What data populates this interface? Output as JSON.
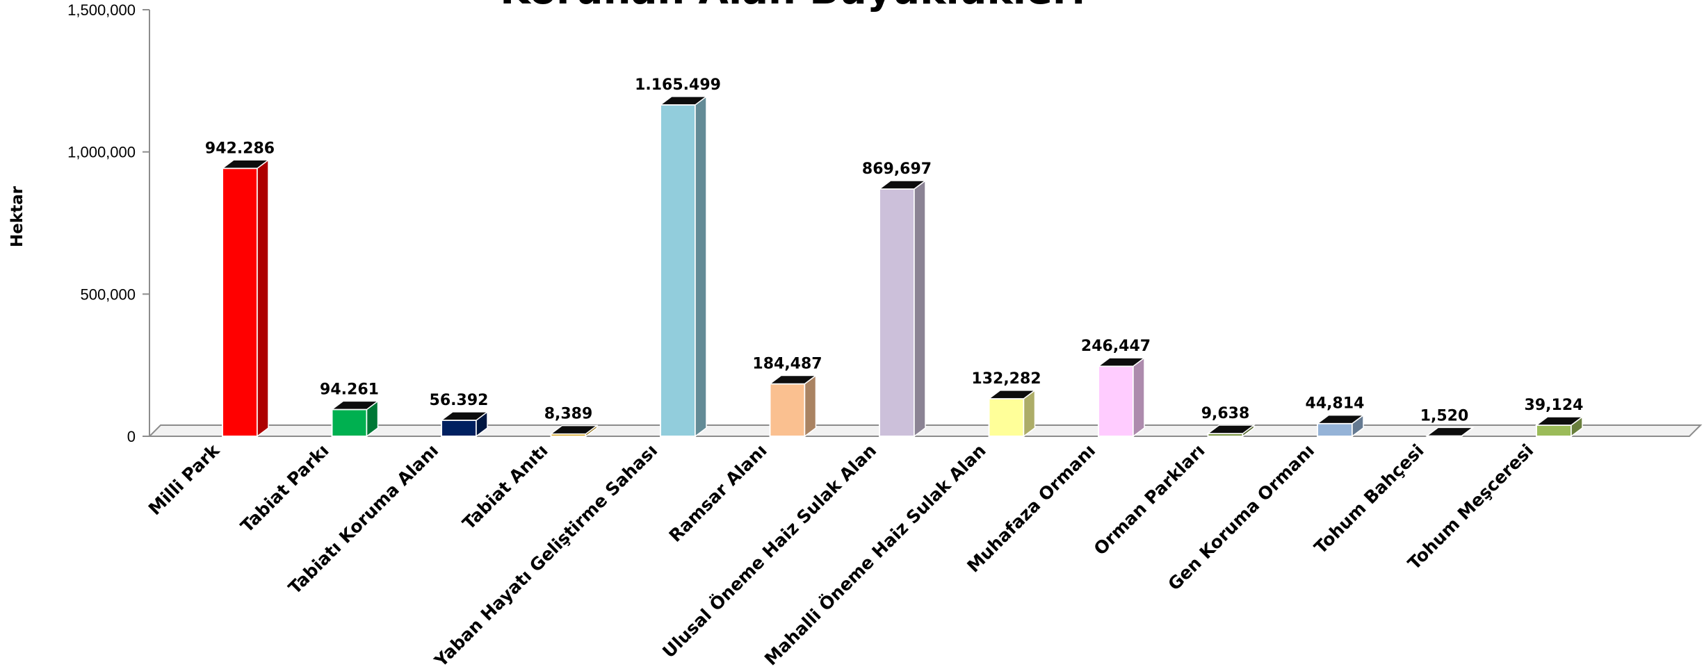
{
  "chart_data": {
    "type": "bar",
    "title": "Korunan Alan Büyüklükleri",
    "ylabel": "Hektar",
    "xlabel": "",
    "ylim": [
      0,
      1500000
    ],
    "y_ticks": [
      0,
      500000,
      1000000,
      1500000
    ],
    "y_tick_labels": [
      "0",
      "500,000",
      "1,000,000",
      "1,500,000"
    ],
    "grid": false,
    "legend": "none",
    "categories": [
      "Milli Park",
      "Tabiat Parkı",
      "Tabiatı Koruma Alanı",
      "Tabiat Anıtı",
      "Yaban Hayatı Geliştirme Sahası",
      "Ramsar Alanı",
      "Ulusal Öneme Haiz Sulak Alan",
      "Mahalli Öneme Haiz Sulak Alan",
      "Muhafaza Ormanı",
      "Orman Parkları",
      "Gen Koruma Ormanı",
      "Tohum Bahçesi",
      "Tohum  Meşceresi"
    ],
    "values": [
      942286,
      94261,
      56392,
      8389,
      1165499,
      184487,
      869697,
      132282,
      246447,
      9638,
      44814,
      1520,
      39124
    ],
    "data_labels": [
      "942.286",
      "94.261",
      "56.392",
      "8,389",
      "1.165.499",
      "184,487",
      "869,697",
      "132,282",
      "246,447",
      "9,638",
      "44,814",
      "1,520",
      "39,124"
    ],
    "colors": [
      "#ff0000",
      "#00b050",
      "#002060",
      "#d4a017",
      "#92cddc",
      "#fac090",
      "#ccc0da",
      "#ffff99",
      "#ffccff",
      "#77933c",
      "#95b3d7",
      "#403151",
      "#9bbb59"
    ]
  }
}
